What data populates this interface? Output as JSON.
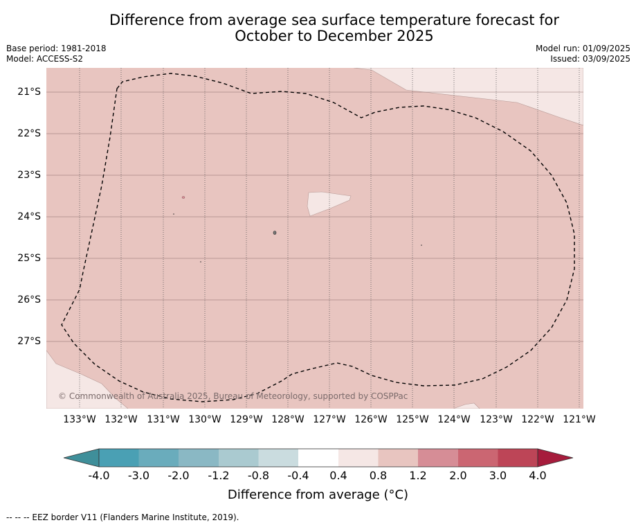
{
  "title_line1": "Difference from average sea surface temperature forecast for",
  "title_line2": "October to December 2025",
  "base_period": "Base period: 1981-2018",
  "model": "Model: ACCESS-S2",
  "model_run": "Model run: 01/09/2025",
  "issued": "Issued: 03/09/2025",
  "latitudes": [
    "21°S",
    "22°S",
    "23°S",
    "24°S",
    "25°S",
    "26°S",
    "27°S"
  ],
  "longitudes": [
    "133°W",
    "132°W",
    "131°W",
    "130°W",
    "129°W",
    "128°W",
    "127°W",
    "126°W",
    "125°W",
    "124°W",
    "123°W",
    "122°W",
    "121°W"
  ],
  "copyright": "© Commonwealth of Australia 2025, Bureau of Meteorology, supported by COSPPac",
  "colorbar": {
    "ticks": [
      "-4.0",
      "-3.0",
      "-2.0",
      "-1.2",
      "-0.8",
      "-0.4",
      "0.4",
      "0.8",
      "1.2",
      "2.0",
      "3.0",
      "4.0"
    ],
    "colors": [
      "#3f8f9a",
      "#4aa0b4",
      "#6aacbc",
      "#8ab8c4",
      "#aacad0",
      "#cadcdf",
      "#ffffff",
      "#f5e7e5",
      "#e8c5c0",
      "#d68d96",
      "#cb6672",
      "#bd4557",
      "#a61c3c"
    ],
    "title": "Difference from average (°C)"
  },
  "footnote": "--  --  -- EEZ border V11 (Flanders Marine Institute, 2019).",
  "map_colors": {
    "main_fill": "#e8c5c0",
    "light_fill": "#f5e7e5",
    "grid": "#8a6a6a"
  }
}
